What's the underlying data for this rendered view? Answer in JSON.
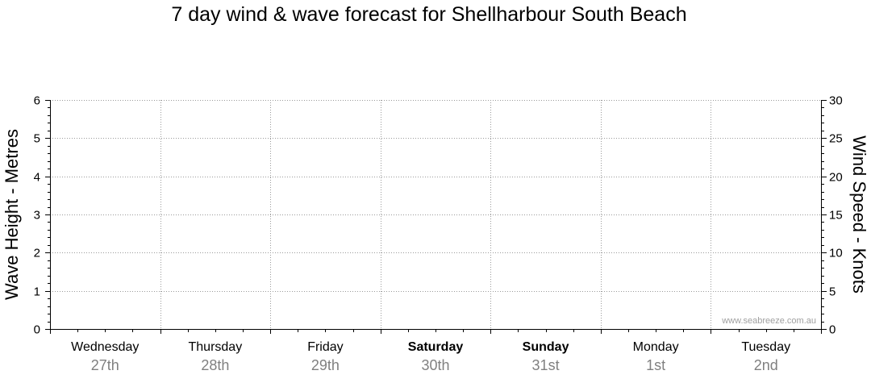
{
  "chart_data": {
    "type": "line",
    "title": "7 day wind & wave forecast for Shellharbour South Beach",
    "ylabel": "Wave Height - Metres",
    "y2label": "Wind Speed - Knots",
    "ylim": [
      0,
      6
    ],
    "y2lim": [
      0,
      30
    ],
    "yticks": [
      0,
      1,
      2,
      3,
      4,
      5,
      6
    ],
    "y2ticks": [
      0,
      5,
      10,
      15,
      20,
      25,
      30
    ],
    "grid": true,
    "days": [
      {
        "name": "Wednesday",
        "date": "27th",
        "bold": false
      },
      {
        "name": "Thursday",
        "date": "28th",
        "bold": false
      },
      {
        "name": "Friday",
        "date": "29th",
        "bold": false
      },
      {
        "name": "Saturday",
        "date": "30th",
        "bold": true
      },
      {
        "name": "Sunday",
        "date": "31st",
        "bold": true
      },
      {
        "name": "Monday",
        "date": "1st",
        "bold": false
      },
      {
        "name": "Tuesday",
        "date": "2nd",
        "bold": false
      }
    ],
    "series": [],
    "watermark": "www.seabreeze.com.au"
  }
}
